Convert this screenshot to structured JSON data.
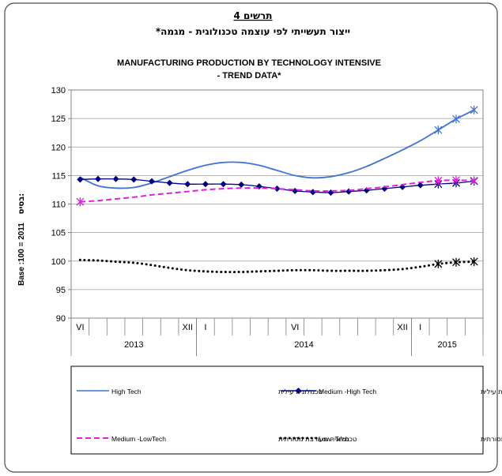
{
  "header": {
    "figure_label": "תרשים 4",
    "title_hebrew": "ייצור תעשייתי לפי עוצמה טכנולוגית - מגמה*"
  },
  "chart_data": {
    "type": "line",
    "title_line1": "MANUFACTURING PRODUCTION BY TECHNOLOGY INTENSIVE",
    "title_line2": "- TREND DATA*",
    "ylabel_hebrew": "בסיס:",
    "ylabel": "Base :100 = 2011",
    "ylim": [
      90,
      130
    ],
    "yticks": [
      90,
      95,
      100,
      105,
      110,
      115,
      120,
      125,
      130
    ],
    "grid": true,
    "months": [
      "2013-06",
      "2013-07",
      "2013-08",
      "2013-09",
      "2013-10",
      "2013-11",
      "2013-12",
      "2014-01",
      "2014-02",
      "2014-03",
      "2014-04",
      "2014-05",
      "2014-06",
      "2014-07",
      "2014-08",
      "2014-09",
      "2014-10",
      "2014-11",
      "2014-12",
      "2015-01",
      "2015-02",
      "2015-03",
      "2015-04"
    ],
    "month_tick_labels": [
      {
        "month": "2013-06",
        "label": "VI"
      },
      {
        "month": "2013-12",
        "label": "XII"
      },
      {
        "month": "2014-01",
        "label": "I"
      },
      {
        "month": "2014-06",
        "label": "VI"
      },
      {
        "month": "2014-12",
        "label": "XII"
      },
      {
        "month": "2015-01",
        "label": "I"
      }
    ],
    "year_labels": [
      {
        "year": "2013",
        "from": "2013-06",
        "to": "2013-12"
      },
      {
        "year": "2014",
        "from": "2014-01",
        "to": "2014-12"
      },
      {
        "year": "2015",
        "from": "2015-01",
        "to": "2015-04"
      }
    ],
    "series": [
      {
        "name": "High Tech",
        "name_hebrew": "טכנולוגיה עילית",
        "color": "#3f74d4",
        "style": "solid",
        "values": [
          114.7,
          113.2,
          112.8,
          112.9,
          113.7,
          114.8,
          115.9,
          116.8,
          117.3,
          117.3,
          116.8,
          115.9,
          115.0,
          114.6,
          114.8,
          115.5,
          116.6,
          118.0,
          119.5,
          121.1,
          123.0,
          124.9,
          126.5
        ]
      },
      {
        "name": "Medium -High Tech",
        "name_hebrew": "טכנולוגיה מעורבת עילית",
        "color": "#000080",
        "style": "solid-diamond",
        "values": [
          114.3,
          114.4,
          114.4,
          114.3,
          114.0,
          113.7,
          113.5,
          113.5,
          113.5,
          113.4,
          113.1,
          112.7,
          112.3,
          112.1,
          112.0,
          112.2,
          112.4,
          112.7,
          113.0,
          113.3,
          113.5,
          113.7,
          114.0
        ]
      },
      {
        "name": "Medium -LowTech",
        "name_hebrew": "טכנולוגיה מעורבת מסורתית",
        "color": "#e020e0",
        "style": "dashed",
        "values": [
          110.4,
          110.6,
          110.9,
          111.2,
          111.6,
          111.9,
          112.2,
          112.5,
          112.7,
          112.8,
          112.8,
          112.7,
          112.5,
          112.3,
          112.3,
          112.4,
          112.7,
          113.0,
          113.4,
          113.8,
          114.1,
          114.2,
          114.1
        ]
      },
      {
        "name": "Low- Tech",
        "name_hebrew": "טכנולוגיה מסורתית",
        "color": "#000000",
        "style": "dotted",
        "values": [
          100.2,
          100.1,
          99.9,
          99.7,
          99.3,
          98.8,
          98.4,
          98.2,
          98.1,
          98.1,
          98.2,
          98.3,
          98.4,
          98.4,
          98.3,
          98.3,
          98.3,
          98.4,
          98.6,
          99.0,
          99.5,
          99.8,
          99.9
        ]
      }
    ],
    "legend_position": "bottom"
  }
}
